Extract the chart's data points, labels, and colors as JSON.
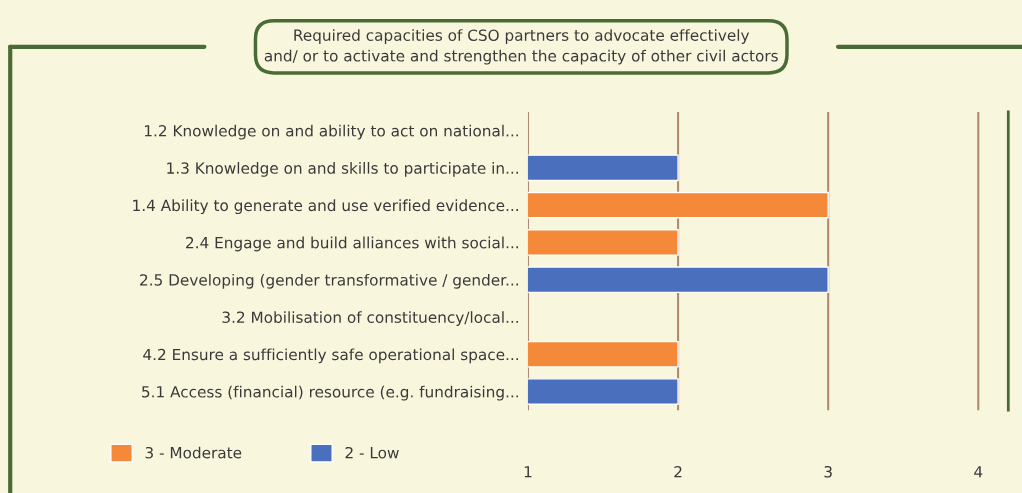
{
  "chart_data": {
    "type": "bar",
    "orientation": "horizontal",
    "title": "Required capacities of CSO partners to advocate effectively\nand/ or to activate and strengthen the capacity of other civil actors",
    "categories": [
      "1.2 Knowledge on and ability to act on national...",
      "1.3 Knowledge on and skills to participate in...",
      "1.4 Ability to generate and use verified evidence...",
      "2.4 Engage and build alliances with social...",
      "2.5 Developing (gender transformative / gender...",
      "3.2 Mobilisation of constituency/local...",
      "4.2 Ensure a sufficiently safe operational space...",
      "5.1 Access (financial) resource (e.g. fundraising..."
    ],
    "series": [
      {
        "name": "3 - Moderate",
        "color": "#f5893a",
        "values": [
          null,
          null,
          3,
          2,
          null,
          null,
          2,
          null
        ]
      },
      {
        "name": "2 - Low",
        "color": "#4a6fbd",
        "values": [
          null,
          2,
          null,
          null,
          3,
          null,
          null,
          2
        ]
      }
    ],
    "xlim": [
      1,
      4.2
    ],
    "xticks": [
      1,
      2,
      3,
      4
    ],
    "grid": "x",
    "legend": "bottom left"
  }
}
